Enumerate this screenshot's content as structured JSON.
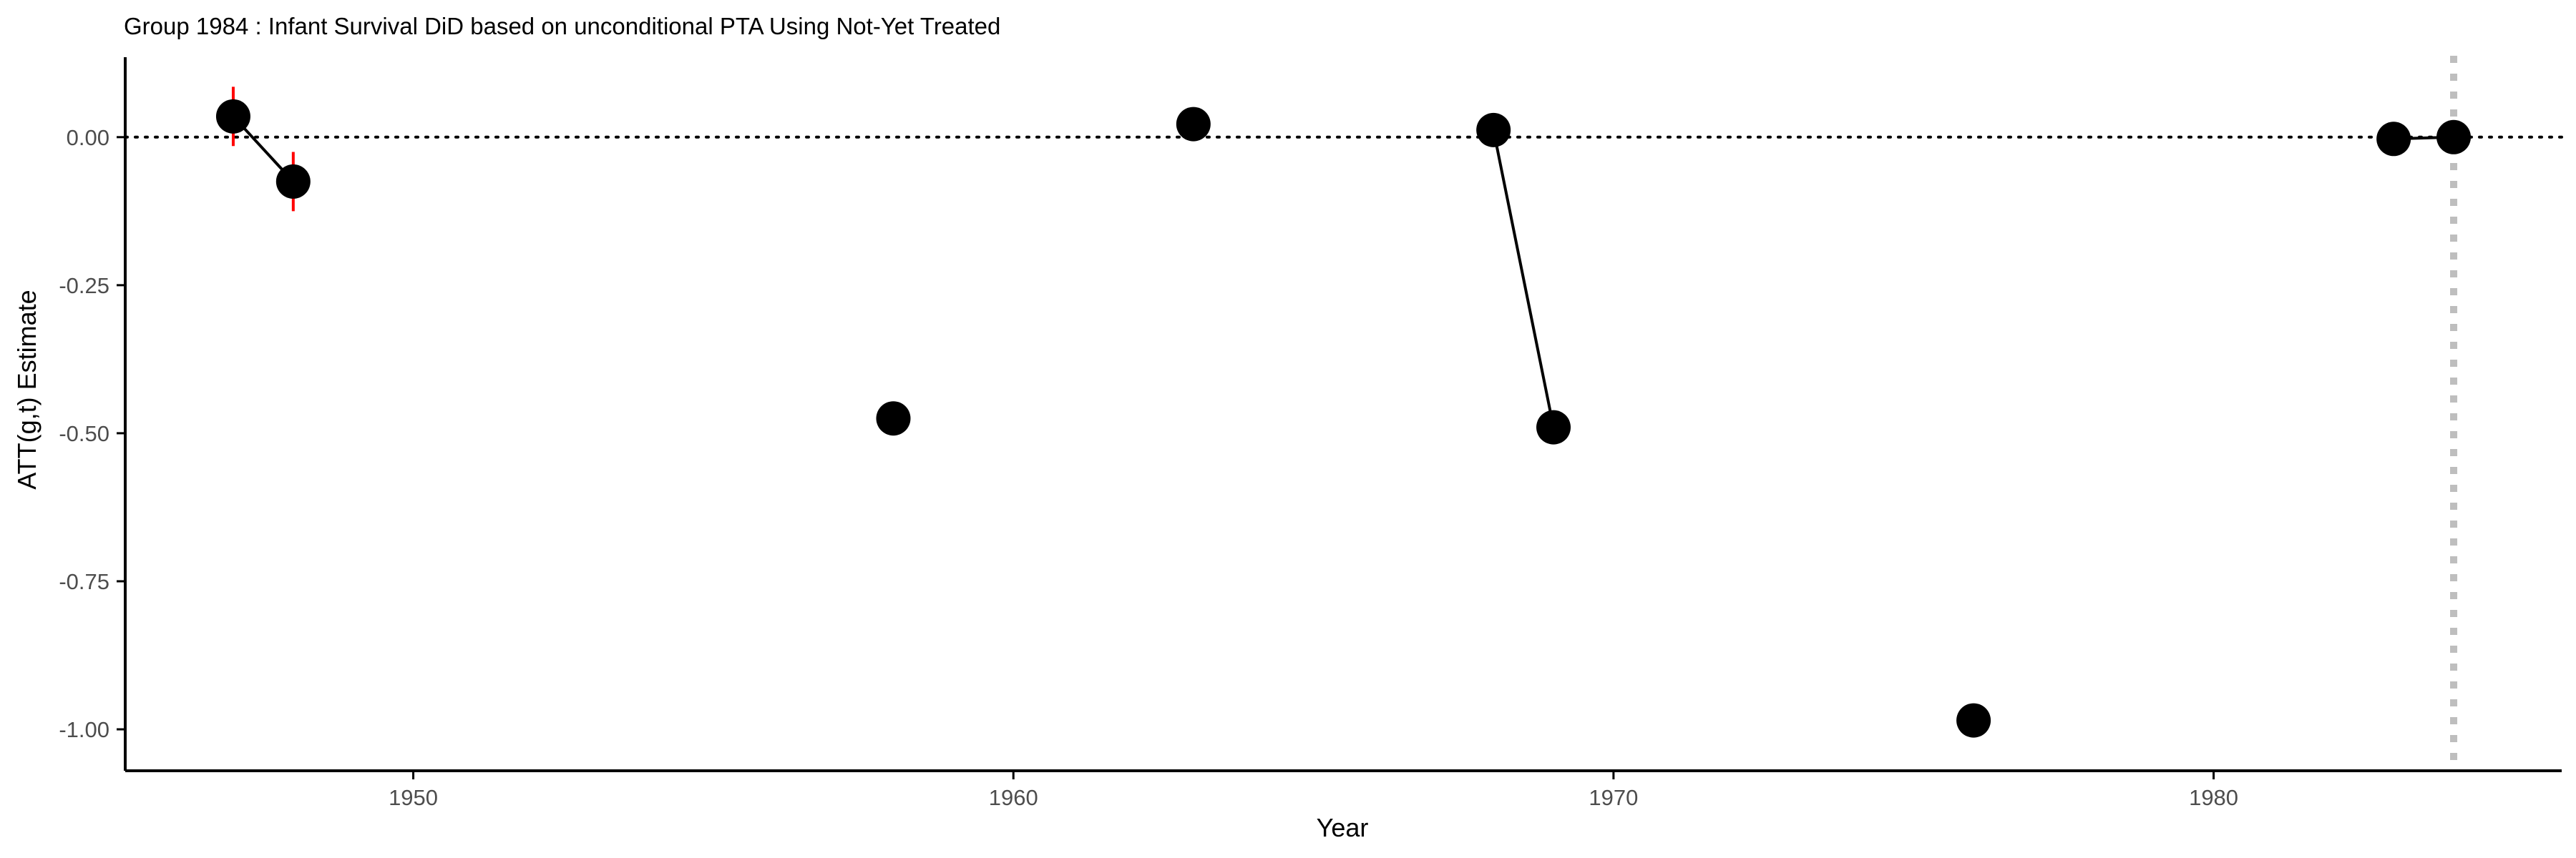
{
  "chart_data": {
    "type": "scatter",
    "title": "Group 1984 : Infant Survival DiD based on unconditional PTA Using Not-Yet Treated",
    "xlabel": "Year",
    "ylabel": "ATT(g,t) Estimate",
    "xlim": [
      1945.2,
      1985.8
    ],
    "ylim": [
      -1.07,
      0.135
    ],
    "x_ticks": [
      1950,
      1960,
      1970,
      1980
    ],
    "y_ticks": [
      0.0,
      -0.25,
      -0.5,
      -0.75,
      -1.0
    ],
    "y_tick_labels": [
      "0.00",
      "-0.25",
      "-0.50",
      "-0.75",
      "-1.00"
    ],
    "reference_hline": 0,
    "treatment_vline": 1984,
    "grid": false,
    "legend": "none",
    "points": [
      {
        "x": 1947,
        "y": 0.035,
        "lo": -0.015,
        "hi": 0.085
      },
      {
        "x": 1948,
        "y": -0.075,
        "lo": -0.125,
        "hi": -0.025
      },
      {
        "x": 1958,
        "y": -0.475,
        "lo": -0.475,
        "hi": -0.475
      },
      {
        "x": 1963,
        "y": 0.022,
        "lo": 0.022,
        "hi": 0.022
      },
      {
        "x": 1968,
        "y": 0.012,
        "lo": 0.012,
        "hi": 0.012
      },
      {
        "x": 1969,
        "y": -0.49,
        "lo": -0.49,
        "hi": -0.49
      },
      {
        "x": 1976,
        "y": -0.985,
        "lo": -1.005,
        "hi": -0.965
      },
      {
        "x": 1983,
        "y": -0.003,
        "lo": -0.003,
        "hi": -0.003
      },
      {
        "x": 1984,
        "y": 0.0,
        "lo": -0.02,
        "hi": 0.02
      }
    ],
    "segments": [
      [
        1947,
        1948
      ],
      [
        1968,
        1969
      ],
      [
        1983,
        1984
      ]
    ],
    "colors": {
      "point": "#000000",
      "error_bar": "#ff0000",
      "line": "#000000",
      "hline": "#000000",
      "vline": "#bebebe",
      "axis": "#000000",
      "tick_label": "#4d4d4d"
    }
  }
}
